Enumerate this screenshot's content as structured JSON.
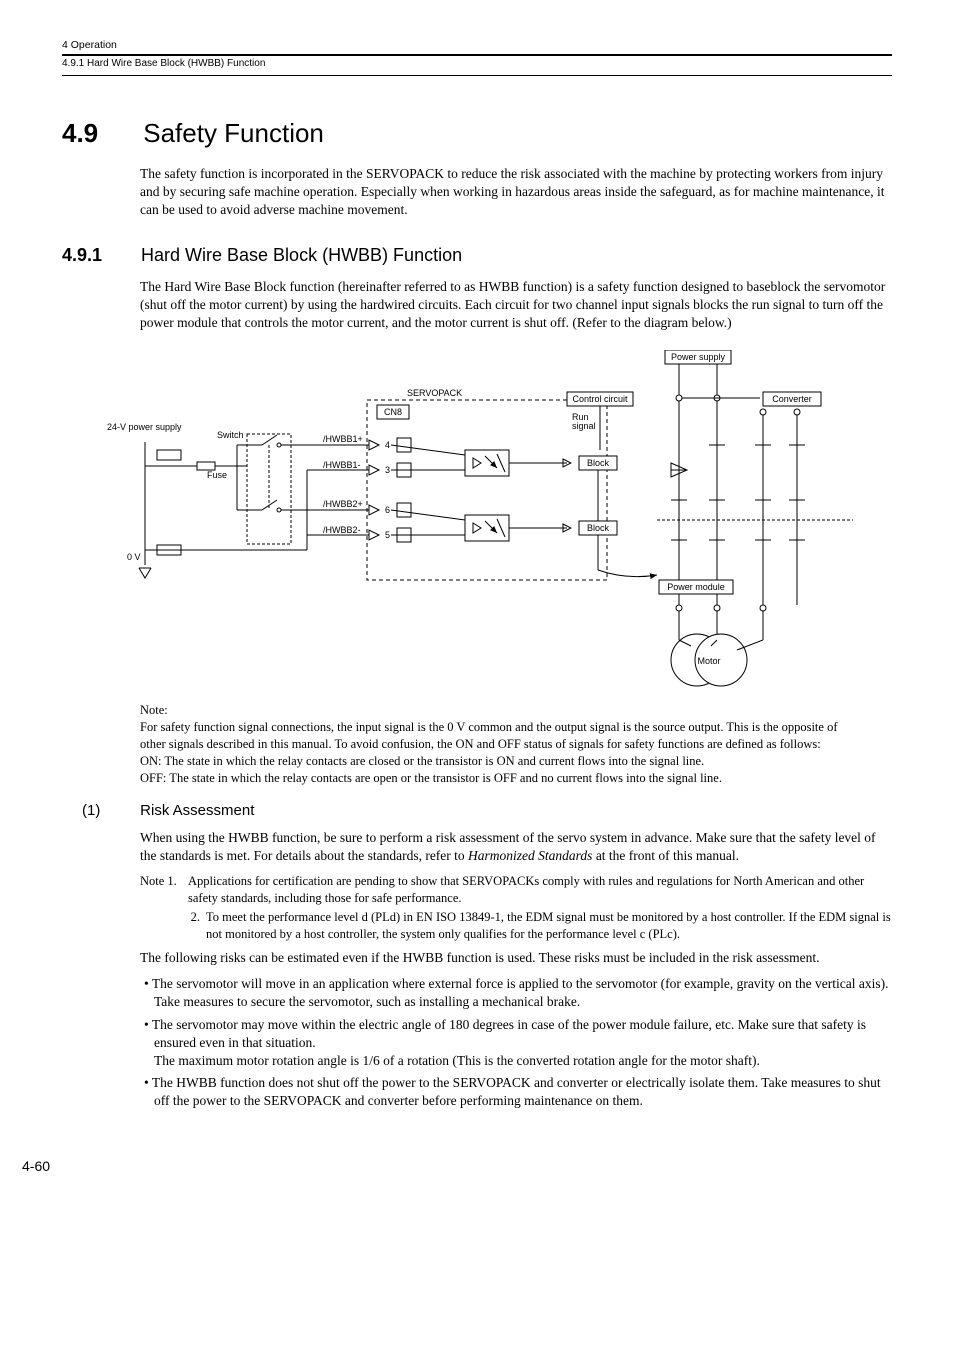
{
  "header": {
    "chapter": "4  Operation",
    "breadcrumb": "4.9.1  Hard Wire Base Block (HWBB) Function"
  },
  "section": {
    "number": "4.9",
    "title": "Safety Function",
    "intro": "The safety function is incorporated in the SERVOPACK to reduce the risk associated with the machine by protecting workers from injury and by securing safe machine operation. Especially when working in hazardous areas inside the safeguard, as for machine maintenance, it can be used to avoid adverse machine movement."
  },
  "subsection": {
    "number": "4.9.1",
    "title": "Hard Wire Base Block (HWBB) Function",
    "intro": "The Hard Wire Base Block function (hereinafter referred to as HWBB function) is a safety function designed to baseblock the servomotor (shut off the motor current) by using the hardwired circuits. Each circuit for two channel input signals blocks the run signal to turn off the power module that controls the motor current, and the motor current is shut off. (Refer to the diagram below.)"
  },
  "diagram": {
    "labels": {
      "ps24v": "24-V power supply",
      "switch": "Switch",
      "fuse": "Fuse",
      "zeroV": "0 V",
      "hwbb1p": "/HWBB1+",
      "hwbb1m": "/HWBB1-",
      "hwbb2p": "/HWBB2+",
      "hwbb2m": "/HWBB2-",
      "cn8": "CN8",
      "servopack": "SERVOPACK",
      "control": "Control circuit",
      "run": "Run\nsignal",
      "block": "Block",
      "powersupply": "Power supply",
      "converter": "Converter",
      "powermodule": "Power module",
      "motor": "Motor",
      "pins": {
        "p4": "4",
        "p3": "3",
        "p6": "6",
        "p5": "5"
      }
    },
    "colors": {
      "stroke": "#000000",
      "bg": "#ffffff",
      "text": "#000000"
    }
  },
  "note1": {
    "label": "Note:",
    "lines": [
      "For safety function signal connections, the input signal is the 0 V common and the output signal is the source output. This is the opposite of other signals described in this manual. To avoid confusion, the ON and OFF status of signals for safety functions are defined as follows:",
      "ON: The state in which the relay contacts are closed or the transistor is ON and current flows into the signal line.",
      "OFF: The state in which the relay contacts are open or the transistor is OFF and no current flows into the signal line."
    ]
  },
  "risk": {
    "num": "(1)",
    "title": "Risk Assessment",
    "p1a": "When using the HWBB function, be sure to perform a risk assessment of the servo system in advance. Make sure that the safety level of the standards is met. For details about the standards, refer to ",
    "p1em": "Harmonized Standards",
    "p1b": " at the front of this manual.",
    "notes": [
      {
        "lab": "Note 1.",
        "txt": "Applications for certification are pending to show that SERVOPACKs comply with rules and regulations for North American and other safety standards, including those for safe performance."
      },
      {
        "lab": "2.",
        "txt": "To meet the performance level d (PLd) in EN ISO 13849-1, the EDM signal must be monitored by a host controller. If the EDM signal is not monitored by a host controller, the system only qualifies for the performance level c (PLc)."
      }
    ],
    "p2": "The following risks can be estimated even if the HWBB function is used. These risks must be included in the risk assessment.",
    "bullets": [
      "The servomotor will move in an application where external force is applied to the servomotor (for example, gravity on the vertical axis). Take measures to secure the servomotor, such as installing a mechanical brake.",
      "The servomotor may move within the electric angle of 180 degrees in case of the power module failure, etc. Make sure that safety is ensured even in that situation.\nThe maximum motor rotation angle is 1/6 of a rotation (This is the converted rotation angle for the motor shaft).",
      "The HWBB function does not shut off the power to the SERVOPACK and converter or electrically isolate them. Take measures to shut off the power to the SERVOPACK and converter before performing maintenance on them."
    ]
  },
  "pagenum": "4-60"
}
